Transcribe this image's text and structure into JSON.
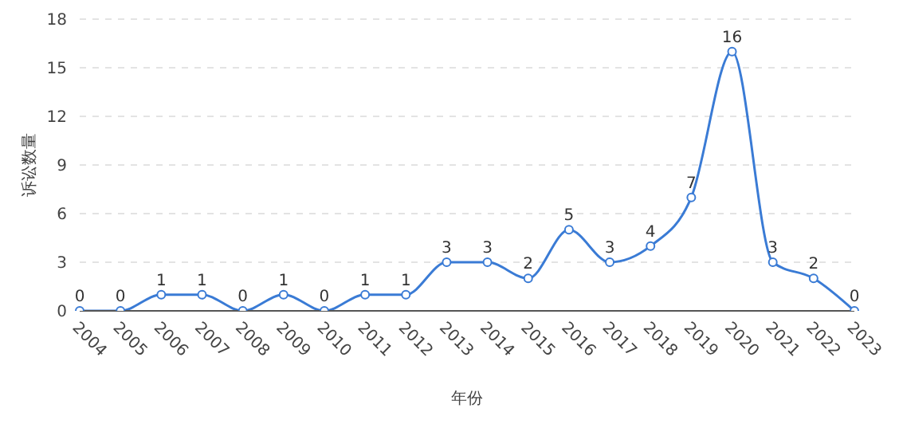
{
  "chart_data": {
    "type": "line",
    "xlabel": "年份",
    "ylabel": "诉讼数量",
    "categories": [
      "2004",
      "2005",
      "2006",
      "2007",
      "2008",
      "2009",
      "2010",
      "2011",
      "2012",
      "2013",
      "2014",
      "2015",
      "2016",
      "2017",
      "2018",
      "2019",
      "2020",
      "2021",
      "2022",
      "2023"
    ],
    "series": [
      {
        "color": "#3a7bd5",
        "values": [
          0,
          0,
          1,
          1,
          0,
          1,
          0,
          1,
          1,
          3,
          3,
          2,
          5,
          3,
          4,
          7,
          16,
          3,
          2,
          0
        ]
      }
    ],
    "ylim": [
      0,
      18
    ],
    "yticks": [
      0,
      3,
      6,
      9,
      12,
      15,
      18
    ],
    "grid": "y",
    "marker": "circle",
    "line_style": "solid",
    "data_labels": true
  }
}
